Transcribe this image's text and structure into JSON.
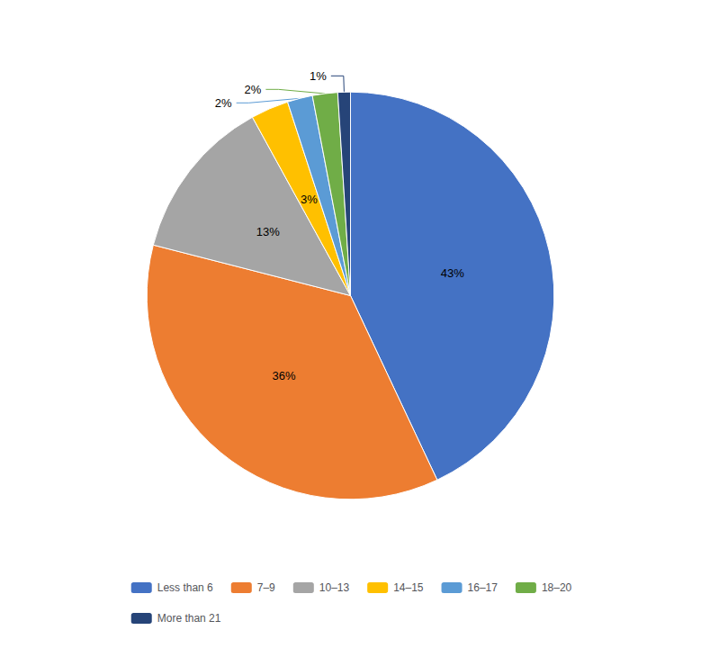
{
  "chart_data": {
    "type": "pie",
    "categories": [
      "Less than 6",
      "7–9",
      "10–13",
      "14–15",
      "16–17",
      "18–20",
      "More than 21"
    ],
    "values": [
      43,
      36,
      13,
      3,
      2,
      2,
      1
    ],
    "value_labels": [
      "43%",
      "36%",
      "13%",
      "3%",
      "2%",
      "2%",
      "1%"
    ],
    "colors": [
      "#4472C4",
      "#ED7D31",
      "#A5A5A5",
      "#FFC000",
      "#5B9BD5",
      "#70AD47",
      "#264478"
    ],
    "data_labels": true,
    "legend": "bottom"
  }
}
